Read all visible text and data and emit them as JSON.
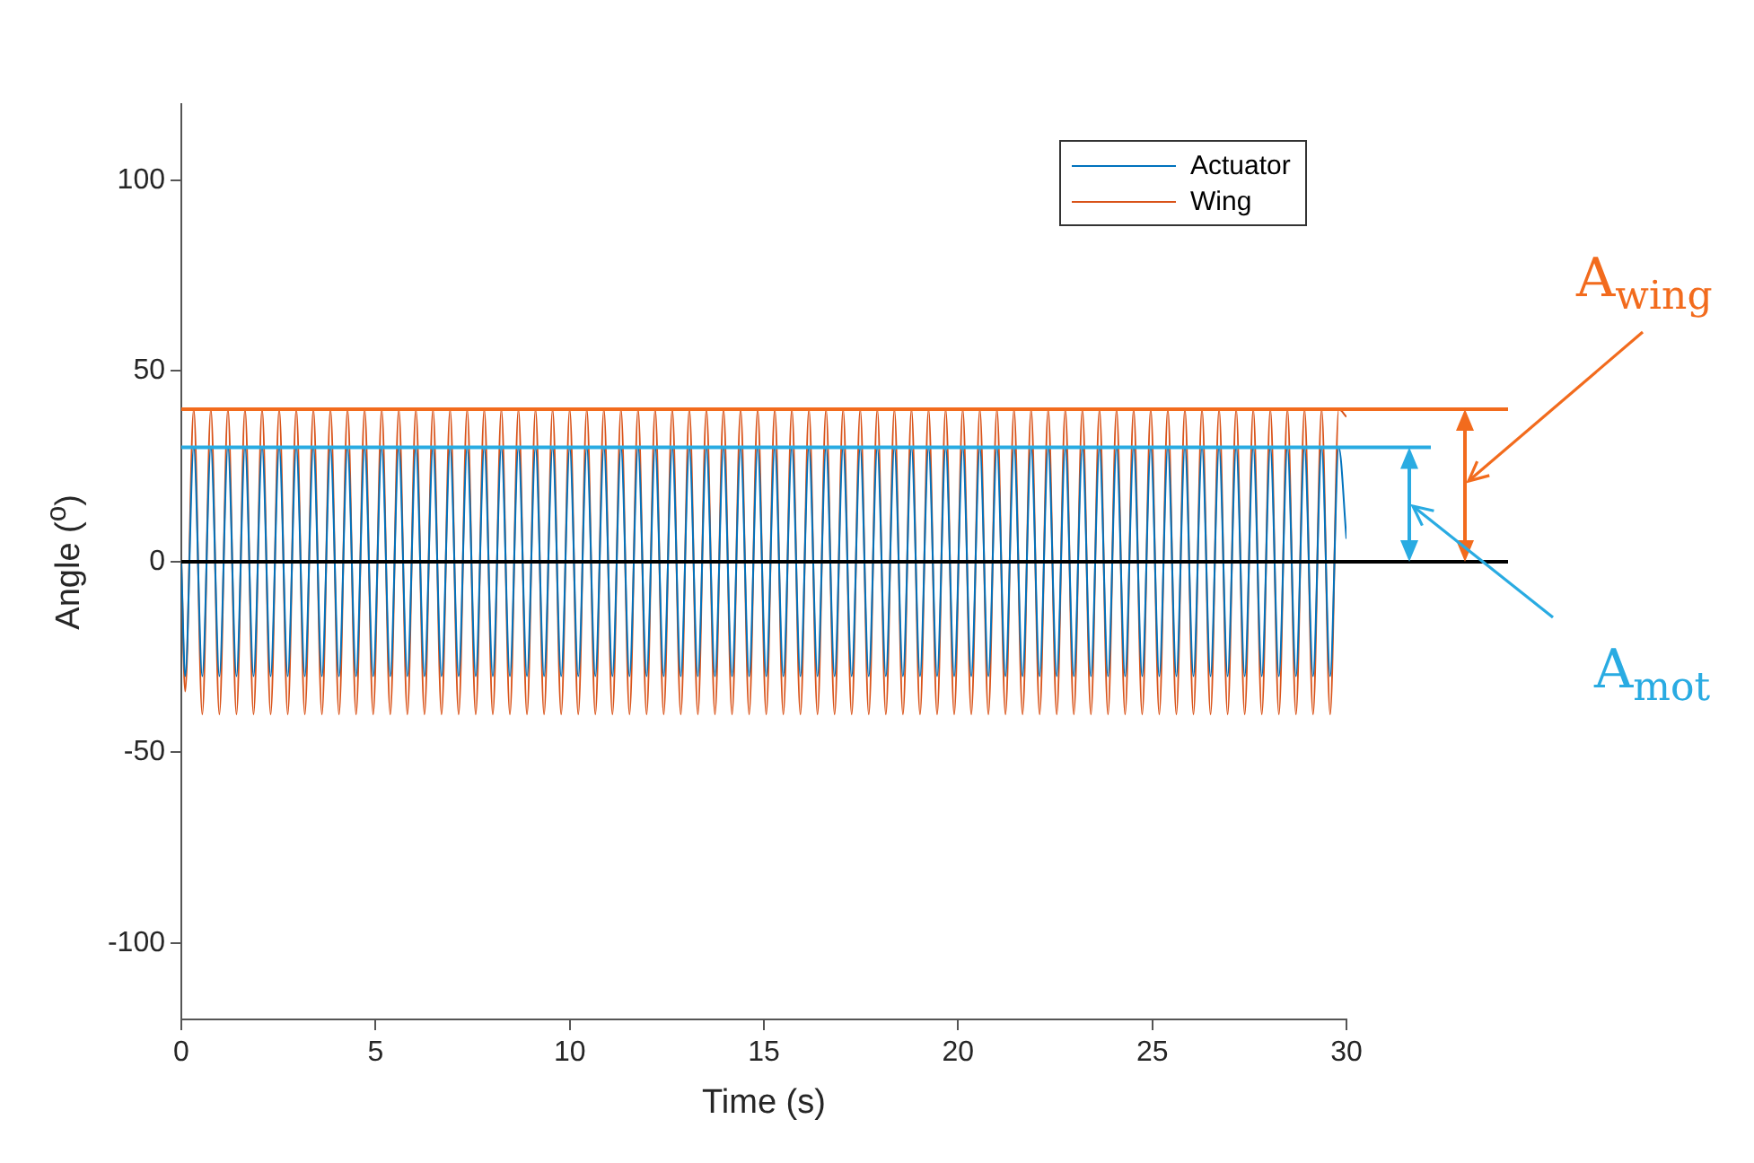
{
  "chart_data": {
    "type": "line",
    "xlabel": "Time (s)",
    "ylabel": "Angle ($^{o}$)",
    "x": [
      0,
      0.1,
      0.32,
      0.54,
      0.76,
      0.98,
      1.2,
      1.42,
      1.64,
      1.86,
      2.08,
      2.3,
      2.52,
      2.74,
      2.96,
      3.18,
      3.4,
      3.62,
      3.84,
      4.06,
      4.28,
      4.5,
      4.72,
      4.94,
      5.16,
      5.38,
      5.6,
      5.82,
      6.04,
      6.26,
      6.48,
      6.7,
      6.92,
      7.14,
      7.36,
      7.58,
      7.8,
      8.02,
      8.24,
      8.46,
      8.68,
      8.9,
      9.12,
      9.34,
      9.56,
      9.78,
      10,
      10.22,
      10.44,
      10.66,
      10.88,
      11.1,
      11.32,
      11.54,
      11.76,
      11.98,
      12.2,
      12.42,
      12.64,
      12.86,
      13.08,
      13.3,
      13.52,
      13.74,
      13.96,
      14.18,
      14.4,
      14.62,
      14.84,
      15.06,
      15.28,
      15.5,
      15.72,
      15.94,
      16.16,
      16.38,
      16.6,
      16.82,
      17.04,
      17.26,
      17.48,
      17.7,
      17.92,
      18.14,
      18.36,
      18.58,
      18.8,
      19.02,
      19.24,
      19.46,
      19.68,
      19.9,
      20.12,
      20.34,
      20.56,
      20.78,
      21,
      21.22,
      21.44,
      21.66,
      21.88,
      22.1,
      22.32,
      22.54,
      22.76,
      22.98,
      23.2,
      23.42,
      23.64,
      23.86,
      24.08,
      24.3,
      24.52,
      24.74,
      24.96,
      25.18,
      25.4,
      25.62,
      25.84,
      26.06,
      26.28,
      26.5,
      26.72,
      26.94,
      27.16,
      27.38,
      27.6,
      27.82,
      28.04,
      28.26,
      28.48,
      28.7,
      28.92,
      29.14,
      29.36,
      29.58,
      29.8,
      30
    ],
    "series": [
      {
        "name": "Actuator",
        "color": "#0072bd",
        "values": [
          0,
          -30,
          30,
          -30,
          30,
          -30,
          30,
          -30,
          30,
          -30,
          30,
          -30,
          30,
          -30,
          30,
          -30,
          30,
          -30,
          30,
          -30,
          30,
          -30,
          30,
          -30,
          30,
          -30,
          30,
          -30,
          30,
          -30,
          30,
          -30,
          30,
          -30,
          30,
          -30,
          30,
          -30,
          30,
          -30,
          30,
          -30,
          30,
          -30,
          30,
          -30,
          30,
          -30,
          30,
          -30,
          30,
          -30,
          30,
          -30,
          30,
          -30,
          30,
          -30,
          30,
          -30,
          30,
          -30,
          30,
          -30,
          30,
          -30,
          30,
          -30,
          30,
          -30,
          30,
          -30,
          30,
          -30,
          30,
          -30,
          30,
          -30,
          30,
          -30,
          30,
          -30,
          30,
          -30,
          30,
          -30,
          30,
          -30,
          30,
          -30,
          30,
          -30,
          30,
          -30,
          30,
          -30,
          30,
          -30,
          30,
          -30,
          30,
          -30,
          30,
          -30,
          30,
          -30,
          30,
          -30,
          30,
          -30,
          30,
          -30,
          30,
          -30,
          30,
          -30,
          30,
          -30,
          30,
          -30,
          30,
          -30,
          30,
          -30,
          30,
          -30,
          30,
          -30,
          30,
          -30,
          30,
          -30,
          30,
          -30,
          30,
          -30,
          30,
          6
        ]
      },
      {
        "name": "Wing",
        "color": "#d95319",
        "values": [
          0,
          -34,
          40,
          -40,
          40,
          -40,
          40,
          -40,
          40,
          -40,
          40,
          -40,
          40,
          -40,
          40,
          -40,
          40,
          -40,
          40,
          -40,
          40,
          -40,
          40,
          -40,
          40,
          -40,
          40,
          -40,
          40,
          -40,
          40,
          -40,
          40,
          -40,
          40,
          -40,
          40,
          -40,
          40,
          -40,
          40,
          -40,
          40,
          -40,
          40,
          -40,
          40,
          -40,
          40,
          -40,
          40,
          -40,
          40,
          -40,
          40,
          -40,
          40,
          -40,
          40,
          -40,
          40,
          -40,
          40,
          -40,
          40,
          -40,
          40,
          -40,
          40,
          -40,
          40,
          -40,
          40,
          -40,
          40,
          -40,
          40,
          -40,
          40,
          -40,
          40,
          -40,
          40,
          -40,
          40,
          -40,
          40,
          -40,
          40,
          -40,
          40,
          -40,
          40,
          -40,
          40,
          -40,
          40,
          -40,
          40,
          -40,
          40,
          -40,
          40,
          -40,
          40,
          -40,
          40,
          -40,
          40,
          -40,
          40,
          -40,
          40,
          -40,
          40,
          -40,
          40,
          -40,
          40,
          -40,
          40,
          -40,
          40,
          -40,
          40,
          -40,
          40,
          -40,
          40,
          -40,
          40,
          -40,
          40,
          -40,
          40,
          -40,
          40,
          38
        ]
      }
    ],
    "xlim": [
      0,
      30
    ],
    "xticks": [
      0,
      5,
      10,
      15,
      20,
      25,
      30
    ],
    "ylim": [
      -120,
      120
    ],
    "yticks": [
      -100,
      -50,
      0,
      50,
      100
    ],
    "ref_lines": [
      {
        "axis": "y",
        "value": 40,
        "color": "#f26b1d"
      },
      {
        "axis": "y",
        "value": 30,
        "color": "#29abe2"
      },
      {
        "axis": "y",
        "value": 0,
        "color": "#000000"
      }
    ],
    "annotations": [
      "A$_{wing}$",
      "A$_{mot}$"
    ],
    "legend": "top right"
  }
}
